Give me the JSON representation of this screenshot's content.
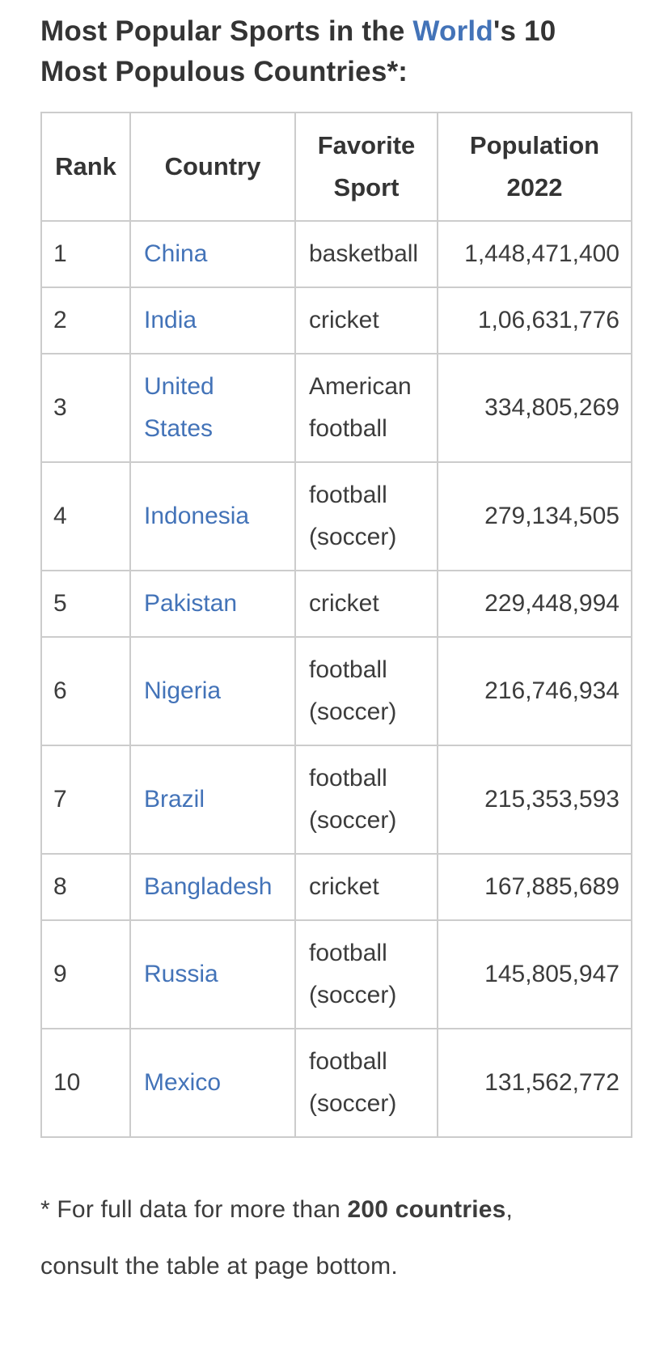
{
  "title": {
    "line1_prefix": "Most Popular Sports in the ",
    "link_text": "World",
    "line1_suffix": "'s 10",
    "line2": "Most Populous Countries*:"
  },
  "colors": {
    "link_blue": "#4373b8",
    "heading_text": "#343434",
    "body_text": "#3c3c3c",
    "table_border": "#cccccc",
    "background": "#ffffff"
  },
  "table": {
    "columns": [
      "Rank",
      "Country",
      "Favorite Sport",
      "Population 2022"
    ],
    "rows": [
      {
        "rank": "1",
        "country": "China",
        "sport": "basketball",
        "population": "1,448,471,400"
      },
      {
        "rank": "2",
        "country": "India",
        "sport": "cricket",
        "population": "1,06,631,776"
      },
      {
        "rank": "3",
        "country": "United\nStates",
        "sport": "American\nfootball",
        "population": "334,805,269"
      },
      {
        "rank": "4",
        "country": "Indonesia",
        "sport": "football\n(soccer)",
        "population": "279,134,505"
      },
      {
        "rank": "5",
        "country": "Pakistan",
        "sport": "cricket",
        "population": "229,448,994"
      },
      {
        "rank": "6",
        "country": "Nigeria",
        "sport": "football\n(soccer)",
        "population": "216,746,934"
      },
      {
        "rank": "7",
        "country": "Brazil",
        "sport": "football\n(soccer)",
        "population": "215,353,593"
      },
      {
        "rank": "8",
        "country": "Bangladesh",
        "sport": "cricket",
        "population": "167,885,689"
      },
      {
        "rank": "9",
        "country": "Russia",
        "sport": "football\n(soccer)",
        "population": "145,805,947"
      },
      {
        "rank": "10",
        "country": "Mexico",
        "sport": "football\n(soccer)",
        "population": "131,562,772"
      }
    ]
  },
  "footnote": {
    "prefix": "* For full data for more than ",
    "bold": "200 countries",
    "suffix": ",",
    "line2": "consult the table at page bottom."
  }
}
